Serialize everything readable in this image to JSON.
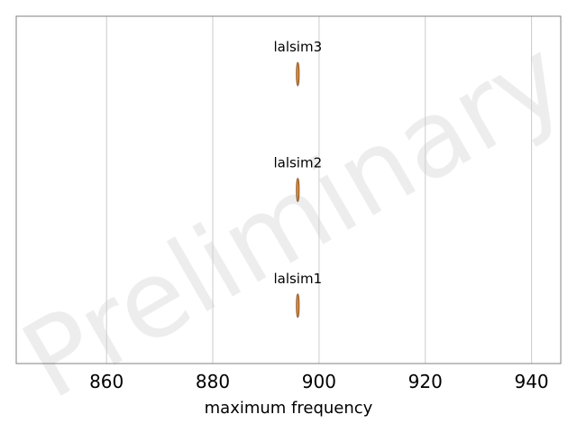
{
  "chart_data": {
    "type": "scatter",
    "title": "",
    "xlabel": "maximum frequency",
    "ylabel": "",
    "xlim": [
      843,
      945.5
    ],
    "xticks": [
      860,
      880,
      900,
      920,
      940
    ],
    "grid": "vertical",
    "watermark": "Preliminary",
    "categories": [
      "lalsim3",
      "lalsim2",
      "lalsim1"
    ],
    "values": [
      896,
      896,
      896
    ],
    "colors": {
      "fill": "#e08a3a",
      "edge": "#7a4a20",
      "grid": "#cccccc",
      "frame": "#808080"
    }
  }
}
